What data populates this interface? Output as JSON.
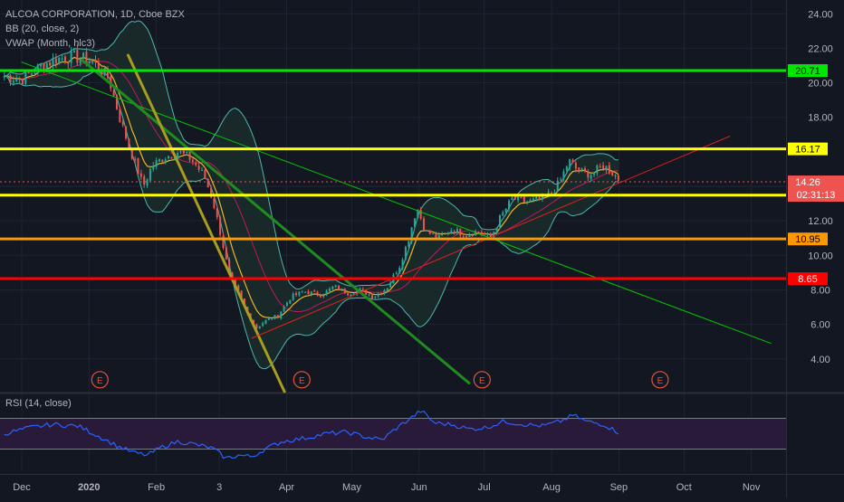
{
  "legend": {
    "title": "ALCOA CORPORATION, 1D, Cboe BZX",
    "bb": "BB (20, close, 2)",
    "vwap": "VWAP (Month, hlc3)"
  },
  "rsi_legend": "RSI (14, close)",
  "colors": {
    "background": "#131722",
    "grid": "#1f2430",
    "axis_text": "#b2b5be",
    "candle_up": "#26a69a",
    "candle_down": "#ef5350",
    "bb_band": "#4db6ac",
    "bb_fill": "#1b2b2b",
    "vwap": "#f0b429",
    "rsi_line": "#2962ff",
    "rsi_band": "#2a1a3a"
  },
  "chart_data": {
    "type": "candlestick",
    "y_ticks": [
      "24.00",
      "22.00",
      "20.00",
      "18.00",
      "14.00",
      "12.00",
      "10.00",
      "8.00",
      "6.00",
      "4.00"
    ],
    "y_tick_values": [
      24,
      22,
      20,
      18,
      14,
      12,
      10,
      8,
      6,
      4
    ],
    "ylim": [
      2.1,
      24.8
    ],
    "x_ticks": [
      "Dec",
      "2020",
      "Feb",
      "3",
      "Apr",
      "May",
      "Jun",
      "Jul",
      "Aug",
      "Sep",
      "Oct",
      "Nov"
    ],
    "x_tick_days": [
      0,
      31,
      62,
      91,
      122,
      152,
      183,
      213,
      244,
      275,
      305,
      336
    ],
    "xlim": [
      -10,
      352
    ],
    "horizontal_levels": [
      {
        "value": 20.71,
        "label": "20.71",
        "color": "#00e600"
      },
      {
        "value": 16.17,
        "label": "16.17",
        "color": "#ffff00"
      },
      {
        "value": 13.49,
        "label": "13.49",
        "color": "#ffff00"
      },
      {
        "value": 10.95,
        "label": "10.95",
        "color": "#ff9800"
      },
      {
        "value": 8.65,
        "label": "8.65",
        "color": "#ff0000"
      }
    ],
    "price_marker": {
      "value": 14.26,
      "label": "14.26",
      "countdown": "02:31:13"
    },
    "trend_lines": [
      {
        "color": "#00c800",
        "width": 1,
        "x": [
          0,
          345
        ],
        "y": [
          21.2,
          4.9
        ]
      },
      {
        "color": "#1e8c1e",
        "width": 3,
        "x": [
          28,
          206
        ],
        "y": [
          21.3,
          2.6
        ]
      },
      {
        "color": "#a89d1f",
        "width": 3,
        "x": [
          49,
          121
        ],
        "y": [
          21.6,
          2.1
        ]
      },
      {
        "color": "#e02020",
        "width": 1,
        "x": [
          106,
          326
        ],
        "y": [
          5.2,
          16.9
        ]
      }
    ],
    "earnings_markers": {
      "label": "E",
      "days": [
        36,
        129,
        212,
        294
      ],
      "value": 3.0
    },
    "closes": [
      {
        "d": -8,
        "c": 20.4
      },
      {
        "d": 0,
        "c": 20.2
      },
      {
        "d": 8,
        "c": 20.9
      },
      {
        "d": 16,
        "c": 21.4
      },
      {
        "d": 24,
        "c": 21.5
      },
      {
        "d": 32,
        "c": 21.3
      },
      {
        "d": 40,
        "c": 20.3
      },
      {
        "d": 46,
        "c": 17.6
      },
      {
        "d": 52,
        "c": 15.4
      },
      {
        "d": 56,
        "c": 14.0
      },
      {
        "d": 60,
        "c": 15.2
      },
      {
        "d": 66,
        "c": 15.7
      },
      {
        "d": 72,
        "c": 16.0
      },
      {
        "d": 78,
        "c": 15.6
      },
      {
        "d": 84,
        "c": 14.6
      },
      {
        "d": 88,
        "c": 13.2
      },
      {
        "d": 92,
        "c": 11.0
      },
      {
        "d": 96,
        "c": 8.6
      },
      {
        "d": 100,
        "c": 7.8
      },
      {
        "d": 104,
        "c": 6.6
      },
      {
        "d": 108,
        "c": 5.8
      },
      {
        "d": 112,
        "c": 6.2
      },
      {
        "d": 118,
        "c": 6.5
      },
      {
        "d": 124,
        "c": 7.6
      },
      {
        "d": 130,
        "c": 7.9
      },
      {
        "d": 138,
        "c": 7.7
      },
      {
        "d": 144,
        "c": 8.2
      },
      {
        "d": 150,
        "c": 7.8
      },
      {
        "d": 156,
        "c": 8.0
      },
      {
        "d": 162,
        "c": 7.6
      },
      {
        "d": 168,
        "c": 8.1
      },
      {
        "d": 174,
        "c": 9.4
      },
      {
        "d": 178,
        "c": 10.9
      },
      {
        "d": 182,
        "c": 12.8
      },
      {
        "d": 186,
        "c": 11.4
      },
      {
        "d": 192,
        "c": 11.0
      },
      {
        "d": 198,
        "c": 11.5
      },
      {
        "d": 204,
        "c": 11.2
      },
      {
        "d": 210,
        "c": 11.4
      },
      {
        "d": 216,
        "c": 11.0
      },
      {
        "d": 220,
        "c": 12.1
      },
      {
        "d": 226,
        "c": 13.3
      },
      {
        "d": 232,
        "c": 13.1
      },
      {
        "d": 238,
        "c": 13.2
      },
      {
        "d": 244,
        "c": 13.6
      },
      {
        "d": 248,
        "c": 14.3
      },
      {
        "d": 252,
        "c": 15.5
      },
      {
        "d": 256,
        "c": 14.9
      },
      {
        "d": 262,
        "c": 14.7
      },
      {
        "d": 268,
        "c": 15.2
      },
      {
        "d": 272,
        "c": 14.8
      },
      {
        "d": 276,
        "c": 14.26
      }
    ],
    "rsi_range": [
      0,
      100
    ],
    "rsi_bands": [
      70,
      30
    ],
    "rsi": [
      {
        "d": -8,
        "v": 50
      },
      {
        "d": 4,
        "v": 58
      },
      {
        "d": 14,
        "v": 62
      },
      {
        "d": 26,
        "v": 60
      },
      {
        "d": 36,
        "v": 46
      },
      {
        "d": 44,
        "v": 34
      },
      {
        "d": 52,
        "v": 25
      },
      {
        "d": 58,
        "v": 22
      },
      {
        "d": 64,
        "v": 32
      },
      {
        "d": 72,
        "v": 40
      },
      {
        "d": 80,
        "v": 36
      },
      {
        "d": 88,
        "v": 31
      },
      {
        "d": 94,
        "v": 18
      },
      {
        "d": 100,
        "v": 22
      },
      {
        "d": 106,
        "v": 20
      },
      {
        "d": 112,
        "v": 30
      },
      {
        "d": 120,
        "v": 40
      },
      {
        "d": 130,
        "v": 44
      },
      {
        "d": 140,
        "v": 50
      },
      {
        "d": 150,
        "v": 52
      },
      {
        "d": 158,
        "v": 46
      },
      {
        "d": 166,
        "v": 42
      },
      {
        "d": 172,
        "v": 56
      },
      {
        "d": 178,
        "v": 68
      },
      {
        "d": 184,
        "v": 80
      },
      {
        "d": 190,
        "v": 64
      },
      {
        "d": 198,
        "v": 62
      },
      {
        "d": 206,
        "v": 56
      },
      {
        "d": 214,
        "v": 58
      },
      {
        "d": 222,
        "v": 66
      },
      {
        "d": 232,
        "v": 62
      },
      {
        "d": 240,
        "v": 60
      },
      {
        "d": 248,
        "v": 66
      },
      {
        "d": 254,
        "v": 74
      },
      {
        "d": 260,
        "v": 66
      },
      {
        "d": 268,
        "v": 62
      },
      {
        "d": 276,
        "v": 50
      }
    ]
  }
}
